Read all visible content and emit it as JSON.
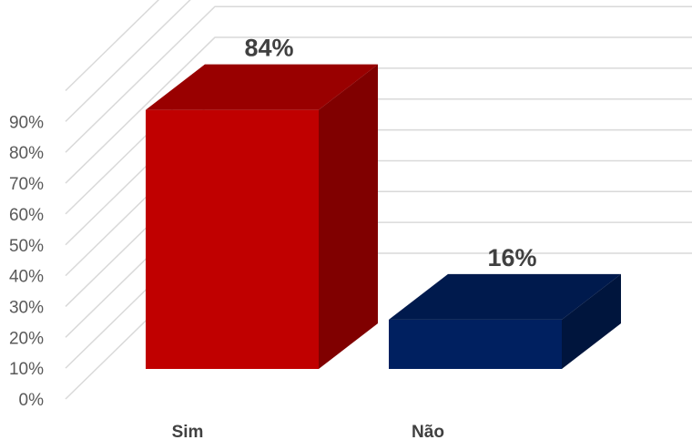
{
  "chart_data": {
    "type": "bar",
    "categories": [
      "Sim",
      "Não"
    ],
    "values": [
      84,
      16
    ],
    "data_labels": [
      "84%",
      "16%"
    ],
    "y_tick_labels": [
      "0%",
      "10%",
      "20%",
      "30%",
      "40%",
      "50%",
      "60%",
      "70%",
      "80%",
      "90%"
    ],
    "ylim": [
      0,
      90
    ],
    "grid": true,
    "legend": "none",
    "colors": {
      "Sim": {
        "front": "#c00000",
        "top": "#990000",
        "side": "#800000"
      },
      "Não": {
        "front": "#002060",
        "top": "#001a4d",
        "side": "#00153d"
      },
      "grid": "#d9d9d9"
    }
  }
}
